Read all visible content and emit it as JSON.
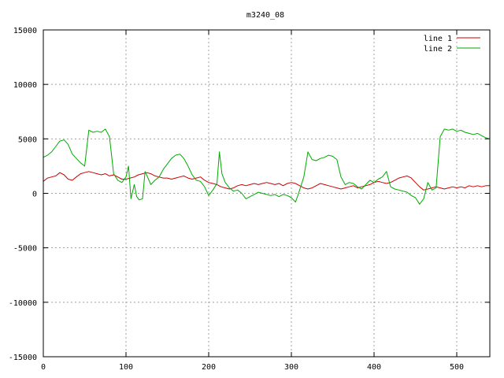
{
  "chart_data": {
    "type": "line",
    "title": "m3240_08",
    "xlabel": "",
    "ylabel": "",
    "xlim": [
      0,
      540
    ],
    "ylim": [
      -15000,
      15000
    ],
    "xticks": [
      0,
      100,
      200,
      300,
      400,
      500
    ],
    "yticks": [
      -15000,
      -10000,
      -5000,
      0,
      5000,
      10000,
      15000
    ],
    "grid": true,
    "legend_position": "top-right",
    "series": [
      {
        "name": "line 1",
        "color": "#cc0000",
        "x": [
          0,
          5,
          10,
          15,
          20,
          25,
          30,
          35,
          40,
          45,
          50,
          55,
          60,
          65,
          70,
          75,
          80,
          85,
          90,
          95,
          100,
          105,
          110,
          115,
          120,
          125,
          130,
          135,
          140,
          145,
          150,
          155,
          160,
          165,
          170,
          175,
          180,
          185,
          190,
          195,
          200,
          205,
          210,
          215,
          220,
          225,
          230,
          235,
          240,
          245,
          250,
          255,
          260,
          265,
          270,
          275,
          280,
          285,
          290,
          295,
          300,
          305,
          310,
          315,
          320,
          325,
          330,
          335,
          340,
          345,
          350,
          355,
          360,
          365,
          370,
          375,
          380,
          385,
          390,
          395,
          400,
          405,
          410,
          415,
          420,
          425,
          430,
          435,
          440,
          445,
          450,
          455,
          460,
          465,
          470,
          475,
          480,
          485,
          490,
          495,
          500,
          505,
          510,
          515,
          520,
          525,
          530,
          535,
          540
        ],
        "y": [
          1100,
          1400,
          1500,
          1600,
          1900,
          1700,
          1300,
          1200,
          1500,
          1800,
          1900,
          2000,
          1900,
          1800,
          1700,
          1800,
          1600,
          1700,
          1500,
          1300,
          1300,
          1400,
          1500,
          1700,
          1800,
          1900,
          1800,
          1600,
          1500,
          1400,
          1400,
          1300,
          1400,
          1500,
          1600,
          1400,
          1300,
          1400,
          1500,
          1200,
          1000,
          900,
          800,
          600,
          500,
          400,
          500,
          700,
          800,
          700,
          800,
          900,
          800,
          900,
          1000,
          900,
          800,
          900,
          700,
          900,
          1000,
          900,
          700,
          500,
          400,
          500,
          700,
          900,
          800,
          700,
          600,
          500,
          400,
          500,
          600,
          700,
          500,
          600,
          700,
          800,
          1000,
          1100,
          1000,
          900,
          1000,
          1200,
          1400,
          1500,
          1600,
          1400,
          1000,
          600,
          300,
          400,
          500,
          600,
          500,
          400,
          500,
          600,
          500,
          600,
          500,
          700,
          600,
          700,
          600,
          700,
          700
        ]
      },
      {
        "name": "line 2",
        "color": "#00aa00",
        "x": [
          0,
          5,
          10,
          15,
          20,
          25,
          30,
          35,
          40,
          45,
          50,
          55,
          60,
          65,
          70,
          75,
          80,
          85,
          90,
          95,
          100,
          103,
          106,
          110,
          113,
          116,
          120,
          123,
          126,
          130,
          135,
          140,
          145,
          150,
          155,
          160,
          165,
          170,
          175,
          180,
          185,
          190,
          195,
          200,
          205,
          210,
          213,
          216,
          220,
          225,
          230,
          235,
          240,
          245,
          250,
          255,
          260,
          265,
          270,
          275,
          280,
          285,
          290,
          295,
          300,
          305,
          310,
          315,
          320,
          325,
          330,
          335,
          340,
          345,
          350,
          355,
          360,
          365,
          370,
          375,
          380,
          385,
          390,
          395,
          400,
          405,
          410,
          415,
          420,
          425,
          430,
          435,
          440,
          445,
          450,
          455,
          460,
          465,
          470,
          475,
          480,
          485,
          490,
          495,
          500,
          505,
          510,
          515,
          520,
          525,
          530,
          535,
          540
        ],
        "y": [
          3300,
          3500,
          3800,
          4300,
          4800,
          4900,
          4500,
          3600,
          3200,
          2800,
          2500,
          5800,
          5600,
          5700,
          5600,
          5900,
          5200,
          1800,
          1200,
          1000,
          1500,
          2500,
          -500,
          800,
          -300,
          -600,
          -500,
          2000,
          1500,
          800,
          1200,
          1500,
          2200,
          2700,
          3200,
          3500,
          3600,
          3200,
          2500,
          1700,
          1200,
          1100,
          600,
          -200,
          300,
          900,
          3800,
          1800,
          1000,
          500,
          200,
          300,
          0,
          -500,
          -300,
          -100,
          100,
          0,
          -100,
          -200,
          -100,
          -300,
          -100,
          -200,
          -400,
          -800,
          300,
          1500,
          3800,
          3100,
          3000,
          3200,
          3300,
          3500,
          3400,
          3100,
          1500,
          800,
          1000,
          900,
          600,
          400,
          800,
          1200,
          1000,
          1300,
          1500,
          2000,
          600,
          400,
          300,
          200,
          100,
          -200,
          -400,
          -1000,
          -500,
          1000,
          300,
          500,
          5200,
          5900,
          5800,
          5900,
          5700,
          5800,
          5600,
          5500,
          5400,
          5500,
          5300,
          5100,
          5000
        ]
      }
    ]
  }
}
